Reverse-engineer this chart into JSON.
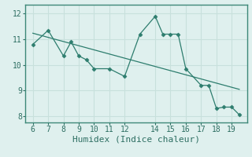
{
  "xlabel": "Humidex (Indice chaleur)",
  "x_data": [
    6,
    7,
    8,
    8.5,
    9,
    9.5,
    10,
    11,
    12,
    13,
    14,
    14.5,
    15,
    15.5,
    16,
    17,
    17.5,
    18,
    18.5,
    19,
    19.5
  ],
  "y_data": [
    10.8,
    11.35,
    10.35,
    10.9,
    10.35,
    10.2,
    9.85,
    9.85,
    9.55,
    11.2,
    11.9,
    11.2,
    11.2,
    11.2,
    9.85,
    9.2,
    9.2,
    8.3,
    8.35,
    8.35,
    8.05
  ],
  "line_color": "#2d7d6e",
  "bg_color": "#dff0ee",
  "grid_color": "#c8e0dc",
  "xlim": [
    5.5,
    20.0
  ],
  "ylim": [
    7.75,
    12.35
  ],
  "xticks": [
    6,
    7,
    8,
    9,
    10,
    11,
    12,
    14,
    15,
    16,
    17,
    18,
    19
  ],
  "yticks": [
    8,
    9,
    10,
    11,
    12
  ],
  "tick_fontsize": 7,
  "xlabel_fontsize": 8,
  "marker_size": 2.5,
  "linewidth": 0.9
}
